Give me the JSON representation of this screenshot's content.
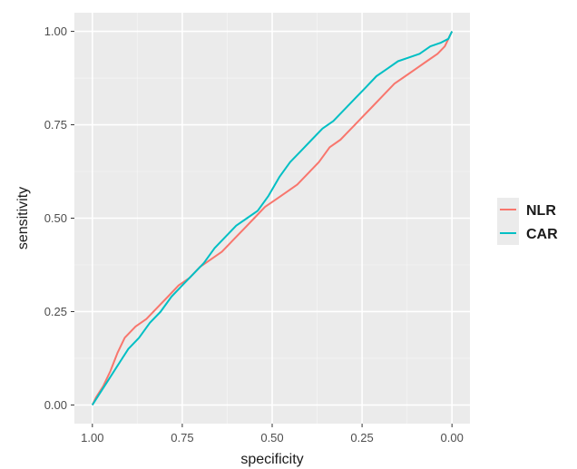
{
  "chart_data": {
    "type": "line",
    "xlabel": "specificity",
    "ylabel": "sensitivity",
    "x_reversed": true,
    "xlim": [
      1.0,
      0.0
    ],
    "ylim": [
      0.0,
      1.0
    ],
    "x_ticks": [
      "1.00",
      "0.75",
      "0.50",
      "0.25",
      "0.00"
    ],
    "y_ticks": [
      "0.00",
      "0.25",
      "0.50",
      "0.75",
      "1.00"
    ],
    "grid": true,
    "legend_position": "right",
    "series": [
      {
        "name": "NLR",
        "color": "#f8766d",
        "points": [
          [
            1.0,
            0.0
          ],
          [
            0.99,
            0.02
          ],
          [
            0.97,
            0.05
          ],
          [
            0.95,
            0.09
          ],
          [
            0.93,
            0.14
          ],
          [
            0.91,
            0.18
          ],
          [
            0.88,
            0.21
          ],
          [
            0.85,
            0.23
          ],
          [
            0.82,
            0.26
          ],
          [
            0.79,
            0.29
          ],
          [
            0.76,
            0.32
          ],
          [
            0.73,
            0.34
          ],
          [
            0.7,
            0.37
          ],
          [
            0.67,
            0.39
          ],
          [
            0.64,
            0.41
          ],
          [
            0.61,
            0.44
          ],
          [
            0.58,
            0.47
          ],
          [
            0.55,
            0.5
          ],
          [
            0.52,
            0.53
          ],
          [
            0.49,
            0.55
          ],
          [
            0.46,
            0.57
          ],
          [
            0.43,
            0.59
          ],
          [
            0.4,
            0.62
          ],
          [
            0.37,
            0.65
          ],
          [
            0.34,
            0.69
          ],
          [
            0.31,
            0.71
          ],
          [
            0.28,
            0.74
          ],
          [
            0.25,
            0.77
          ],
          [
            0.22,
            0.8
          ],
          [
            0.19,
            0.83
          ],
          [
            0.16,
            0.86
          ],
          [
            0.13,
            0.88
          ],
          [
            0.1,
            0.9
          ],
          [
            0.07,
            0.92
          ],
          [
            0.04,
            0.94
          ],
          [
            0.02,
            0.96
          ],
          [
            0.0,
            1.0
          ]
        ]
      },
      {
        "name": "CAR",
        "color": "#00bfc4",
        "points": [
          [
            1.0,
            0.0
          ],
          [
            0.98,
            0.03
          ],
          [
            0.96,
            0.06
          ],
          [
            0.94,
            0.09
          ],
          [
            0.92,
            0.12
          ],
          [
            0.9,
            0.15
          ],
          [
            0.87,
            0.18
          ],
          [
            0.84,
            0.22
          ],
          [
            0.81,
            0.25
          ],
          [
            0.78,
            0.29
          ],
          [
            0.75,
            0.32
          ],
          [
            0.72,
            0.35
          ],
          [
            0.69,
            0.38
          ],
          [
            0.66,
            0.42
          ],
          [
            0.63,
            0.45
          ],
          [
            0.6,
            0.48
          ],
          [
            0.57,
            0.5
          ],
          [
            0.54,
            0.52
          ],
          [
            0.51,
            0.56
          ],
          [
            0.48,
            0.61
          ],
          [
            0.45,
            0.65
          ],
          [
            0.42,
            0.68
          ],
          [
            0.39,
            0.71
          ],
          [
            0.36,
            0.74
          ],
          [
            0.33,
            0.76
          ],
          [
            0.3,
            0.79
          ],
          [
            0.27,
            0.82
          ],
          [
            0.24,
            0.85
          ],
          [
            0.21,
            0.88
          ],
          [
            0.18,
            0.9
          ],
          [
            0.15,
            0.92
          ],
          [
            0.12,
            0.93
          ],
          [
            0.09,
            0.94
          ],
          [
            0.06,
            0.96
          ],
          [
            0.03,
            0.97
          ],
          [
            0.01,
            0.98
          ],
          [
            0.0,
            1.0
          ]
        ]
      }
    ]
  }
}
